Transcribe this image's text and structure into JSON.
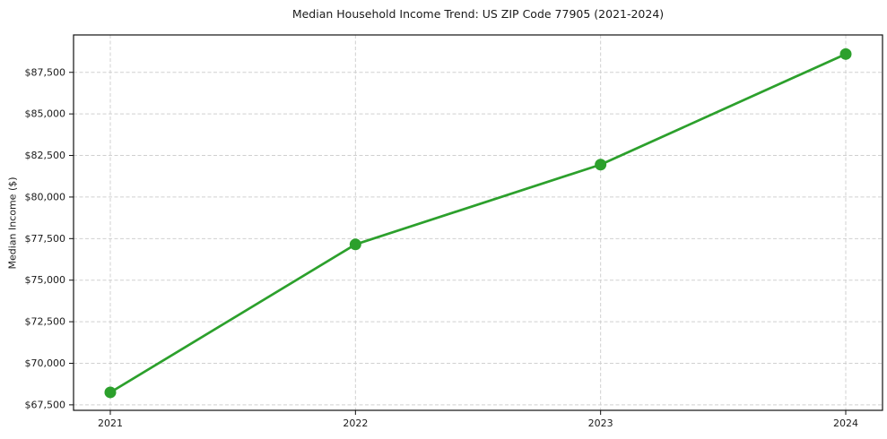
{
  "chart_data": {
    "type": "line",
    "title": "Median Household Income Trend: US ZIP Code 77905 (2021-2024)",
    "xlabel": "",
    "ylabel": "Median Income ($)",
    "categories": [
      2021,
      2022,
      2023,
      2024
    ],
    "series": [
      {
        "name": "Median Household Income",
        "values": [
          68250,
          77150,
          81950,
          88600
        ]
      }
    ],
    "xtick_labels": [
      "2021",
      "2022",
      "2023",
      "2024"
    ],
    "ytick_values": [
      67500,
      70000,
      72500,
      75000,
      77500,
      80000,
      82500,
      85000,
      87500
    ],
    "ytick_labels": [
      "$67,500",
      "$70,000",
      "$72,500",
      "$75,000",
      "$77,500",
      "$80,000",
      "$82,500",
      "$85,000",
      "$87,500"
    ],
    "xlim": [
      2020.85,
      2024.15
    ],
    "ylim": [
      67170,
      89750
    ],
    "grid": true,
    "grid_style": "dashed",
    "legend_position": "none",
    "marker_style": "circle",
    "colors": {
      "line": "#2ca02c",
      "marker": "#2ca02c",
      "grid": "#d0d0d0",
      "spine": "#111111",
      "text": "#1a1a1a",
      "background": "#ffffff"
    }
  }
}
